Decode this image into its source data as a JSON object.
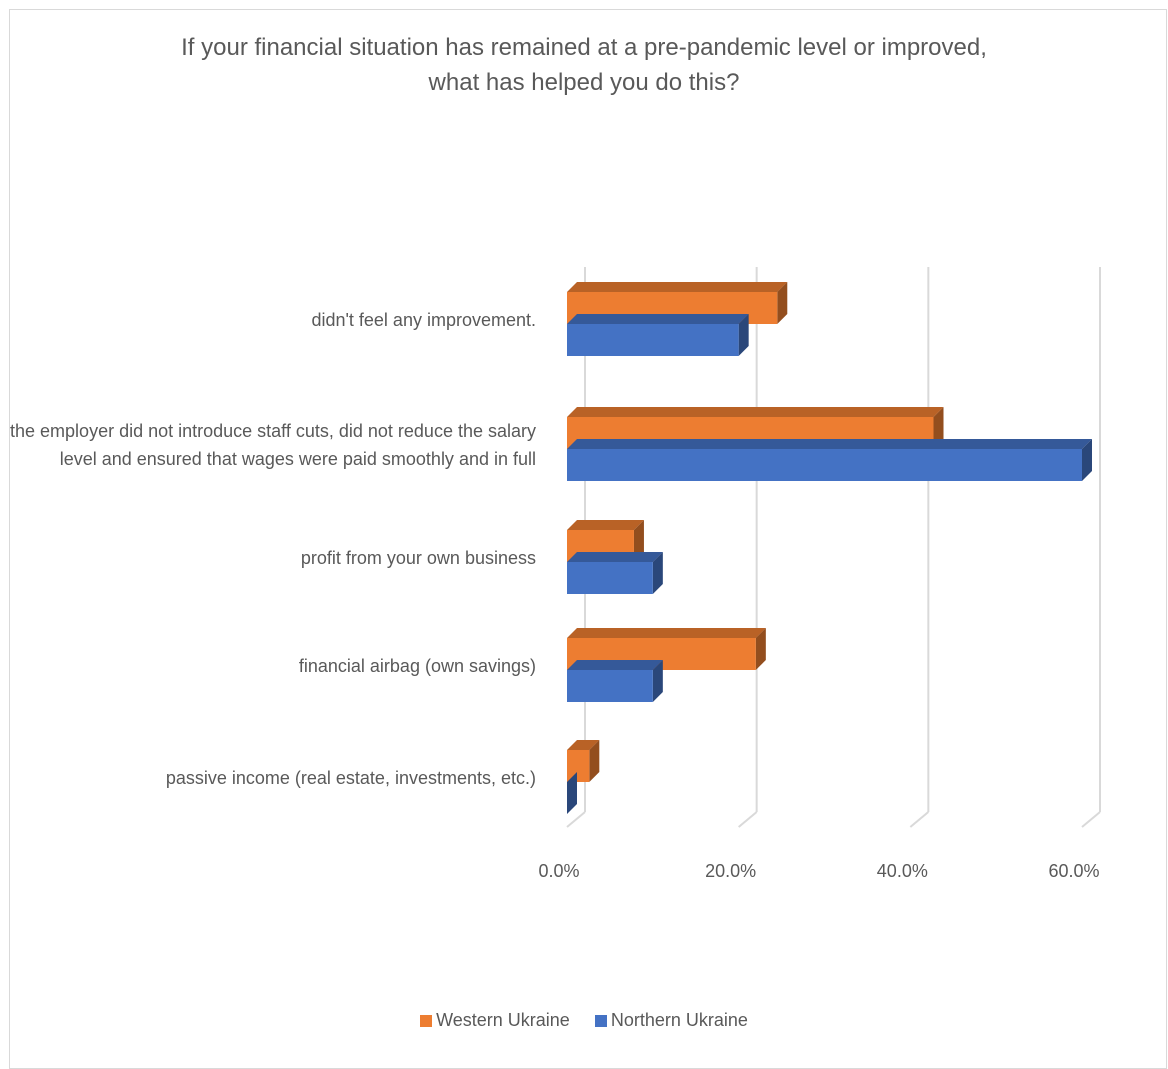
{
  "chart_data": {
    "type": "bar",
    "orientation": "horizontal",
    "title": "If your financial situation has remained at a pre-pandemic level or improved,\nwhat has helped you do this?",
    "categories": [
      "didn't feel any improvement.",
      "the employer did not introduce staff cuts, did not reduce the salary level and ensured that wages were paid smoothly and in full",
      "profit from your own business",
      "financial airbag (own savings)",
      "passive income (real estate, investments, etc.)"
    ],
    "series": [
      {
        "name": "Western Ukraine",
        "color": "#ED7D31",
        "values": [
          24.5,
          42.7,
          7.8,
          22.0,
          2.6
        ]
      },
      {
        "name": "Northern Ukraine",
        "color": "#4472C4",
        "values": [
          20.0,
          60.0,
          10.0,
          10.0,
          0.0
        ]
      }
    ],
    "xlim": [
      0,
      60
    ],
    "xticks": [
      "0.0%",
      "20.0%",
      "40.0%",
      "60.0%"
    ],
    "grid": true,
    "legend_position": "bottom"
  }
}
